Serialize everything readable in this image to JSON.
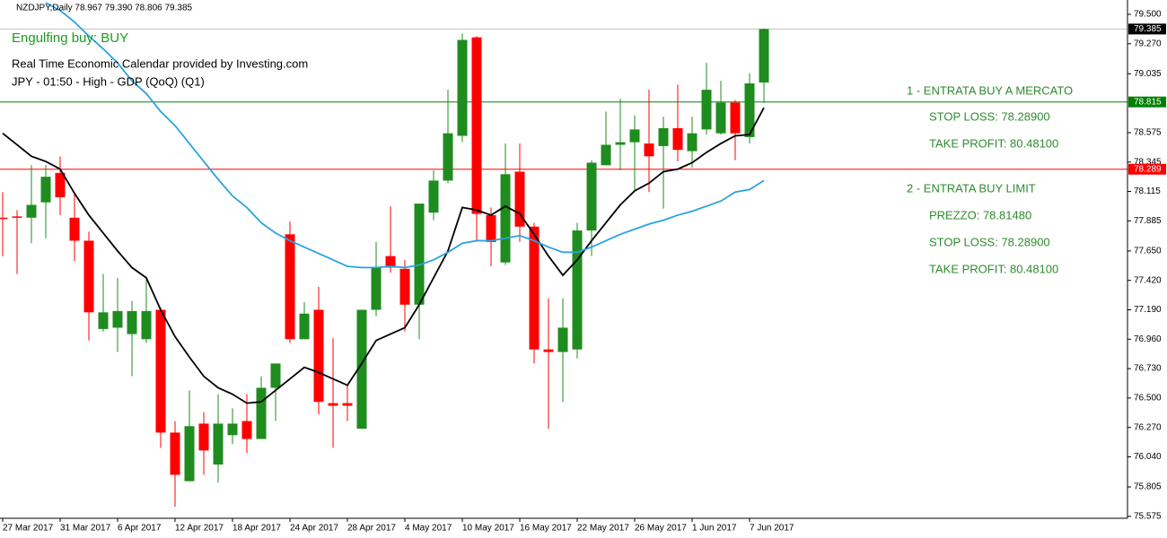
{
  "chart_data": {
    "type": "candlestick",
    "header": "NZDJPY,Daily  78.967 79.390 78.806 79.385",
    "signal": "Engulfing buy: BUY",
    "calendar": "Real Time Economic Calendar provided by Investing.com",
    "event": "JPY - 01:50 - High - GDP (QoQ) (Q1)",
    "trade_notes": [
      "1 - ENTRATA BUY A MERCATO",
      "STOP LOSS: 78.28900",
      "TAKE PROFIT: 80.48100",
      "2 - ENTRATA BUY LIMIT",
      "PREZZO: 78.81480",
      "STOP LOSS: 78.28900",
      "TAKE PROFIT: 80.48100"
    ],
    "categories": [
      "27 Mar 2017",
      null,
      null,
      null,
      "31 Mar 2017",
      null,
      null,
      null,
      "6 Apr 2017",
      null,
      null,
      null,
      "12 Apr 2017",
      null,
      null,
      null,
      "18 Apr 2017",
      null,
      null,
      null,
      "24 Apr 2017",
      null,
      null,
      null,
      "28 Apr 2017",
      null,
      null,
      null,
      "4 May 2017",
      null,
      null,
      null,
      "10 May 2017",
      null,
      null,
      null,
      "16 May 2017",
      null,
      null,
      null,
      "22 May 2017",
      null,
      null,
      null,
      "26 May 2017",
      null,
      null,
      null,
      "1 Jun 2017",
      null,
      null,
      null,
      "7 Jun 2017",
      null
    ],
    "open": [
      77.91,
      77.92,
      77.91,
      78.03,
      78.26,
      77.91,
      77.73,
      77.04,
      77.05,
      77.0,
      76.96,
      77.19,
      76.23,
      75.85,
      76.3,
      75.98,
      76.21,
      76.32,
      76.18,
      76.58,
      77.78,
      76.96,
      77.19,
      76.46,
      76.46,
      76.26,
      77.19,
      77.61,
      77.51,
      77.23,
      77.95,
      78.2,
      78.55,
      79.32,
      77.93,
      77.56,
      78.27,
      77.84,
      76.88,
      76.86,
      76.88,
      77.81,
      78.32,
      78.48,
      78.5,
      78.49,
      78.47,
      78.61,
      78.43,
      78.6,
      78.57,
      78.81,
      78.54,
      78.967
    ],
    "high": [
      78.11,
      77.97,
      78.32,
      78.32,
      78.39,
      78.11,
      77.8,
      77.47,
      77.44,
      77.26,
      77.43,
      77.21,
      76.32,
      76.56,
      76.39,
      76.53,
      76.42,
      76.53,
      76.67,
      76.77,
      77.88,
      77.25,
      77.37,
      76.97,
      76.6,
      77.19,
      77.72,
      78.0,
      77.58,
      78.02,
      78.28,
      78.91,
      79.35,
      79.33,
      77.99,
      78.49,
      78.49,
      77.87,
      77.28,
      77.28,
      77.87,
      78.36,
      78.74,
      78.84,
      78.71,
      78.91,
      78.7,
      78.95,
      78.7,
      79.12,
      78.98,
      78.83,
      79.04,
      79.39
    ],
    "low": [
      77.61,
      77.47,
      77.71,
      77.75,
      77.93,
      77.57,
      76.95,
      77.02,
      76.86,
      76.67,
      76.93,
      76.11,
      75.65,
      75.85,
      75.9,
      75.84,
      76.14,
      76.07,
      76.18,
      76.32,
      76.93,
      76.96,
      76.37,
      76.11,
      76.32,
      76.26,
      77.14,
      77.48,
      77.02,
      76.96,
      77.89,
      78.18,
      78.5,
      77.73,
      77.53,
      77.54,
      77.72,
      76.77,
      76.26,
      76.47,
      76.81,
      77.61,
      78.32,
      78.28,
      78.11,
      78.11,
      77.98,
      78.35,
      78.3,
      78.56,
      78.56,
      78.36,
      78.49,
      78.806
    ],
    "close": [
      77.9,
      77.91,
      78.01,
      78.23,
      78.07,
      77.73,
      77.17,
      77.17,
      77.18,
      77.18,
      77.18,
      76.23,
      75.9,
      76.28,
      76.09,
      76.3,
      76.3,
      76.18,
      76.58,
      76.77,
      76.96,
      77.16,
      76.47,
      76.44,
      76.44,
      77.19,
      77.52,
      77.52,
      77.23,
      78.02,
      78.2,
      78.57,
      79.3,
      77.94,
      77.72,
      78.25,
      77.84,
      76.88,
      76.86,
      77.05,
      77.81,
      78.34,
      78.48,
      78.5,
      78.6,
      78.39,
      78.61,
      78.44,
      78.57,
      78.91,
      78.81,
      78.57,
      78.96,
      79.385
    ],
    "up_color": "#1e8c1e",
    "down_color": "#ff0000",
    "lines": [
      {
        "color": "#000000",
        "values": [
          78.57,
          78.48,
          78.39,
          78.35,
          78.29,
          78.1,
          77.93,
          77.79,
          77.65,
          77.52,
          77.44,
          77.19,
          76.98,
          76.82,
          76.67,
          76.58,
          76.53,
          76.46,
          76.47,
          76.56,
          76.65,
          76.74,
          76.7,
          76.65,
          76.6,
          76.77,
          76.95,
          77.0,
          77.05,
          77.23,
          77.44,
          77.65,
          77.99,
          77.97,
          77.93,
          78.0,
          77.94,
          77.78,
          77.61,
          77.46,
          77.58,
          77.73,
          77.87,
          78.01,
          78.12,
          78.18,
          78.27,
          78.29,
          78.34,
          78.42,
          78.49,
          78.55,
          78.56,
          78.77
        ]
      },
      {
        "color": "#29a3e0",
        "values": [
          null,
          null,
          null,
          79.59,
          79.53,
          79.44,
          79.33,
          79.23,
          79.12,
          78.98,
          78.88,
          78.74,
          78.63,
          78.49,
          78.35,
          78.21,
          78.08,
          77.99,
          77.87,
          77.79,
          77.73,
          77.68,
          77.63,
          77.58,
          77.53,
          77.52,
          77.52,
          77.53,
          77.52,
          77.54,
          77.58,
          77.64,
          77.71,
          77.73,
          77.73,
          77.75,
          77.77,
          77.73,
          77.68,
          77.64,
          77.64,
          77.68,
          77.73,
          77.78,
          77.82,
          77.86,
          77.89,
          77.93,
          77.96,
          78.0,
          78.04,
          78.11,
          78.13,
          78.2
        ]
      }
    ],
    "price_levels": [
      79.385,
      78.815,
      78.289
    ],
    "level_line_colors": [
      "#c0c0c0",
      "#008000",
      "#ff0000"
    ],
    "level_label_colors": [
      "#000000",
      "#008000",
      "#ff0000"
    ],
    "ylim": [
      75.56,
      79.612
    ],
    "yticks": [
      {
        "value": 79.5,
        "label": "79.500"
      },
      {
        "value": 79.27,
        "label": "79.270"
      },
      79.035,
      78.575,
      78.345,
      78.115,
      77.885,
      {
        "value": 77.65,
        "label": "77.650"
      },
      {
        "value": 77.42,
        "label": "77.420"
      },
      {
        "value": 77.19,
        "label": "77.190"
      },
      {
        "value": 76.96,
        "label": "76.960"
      },
      {
        "value": 76.73,
        "label": "76.730"
      },
      {
        "value": 76.5,
        "label": "76.500"
      },
      {
        "value": 76.27,
        "label": "76.270"
      },
      {
        "value": 76.04,
        "label": "76.040"
      },
      75.805,
      75.575
    ]
  }
}
